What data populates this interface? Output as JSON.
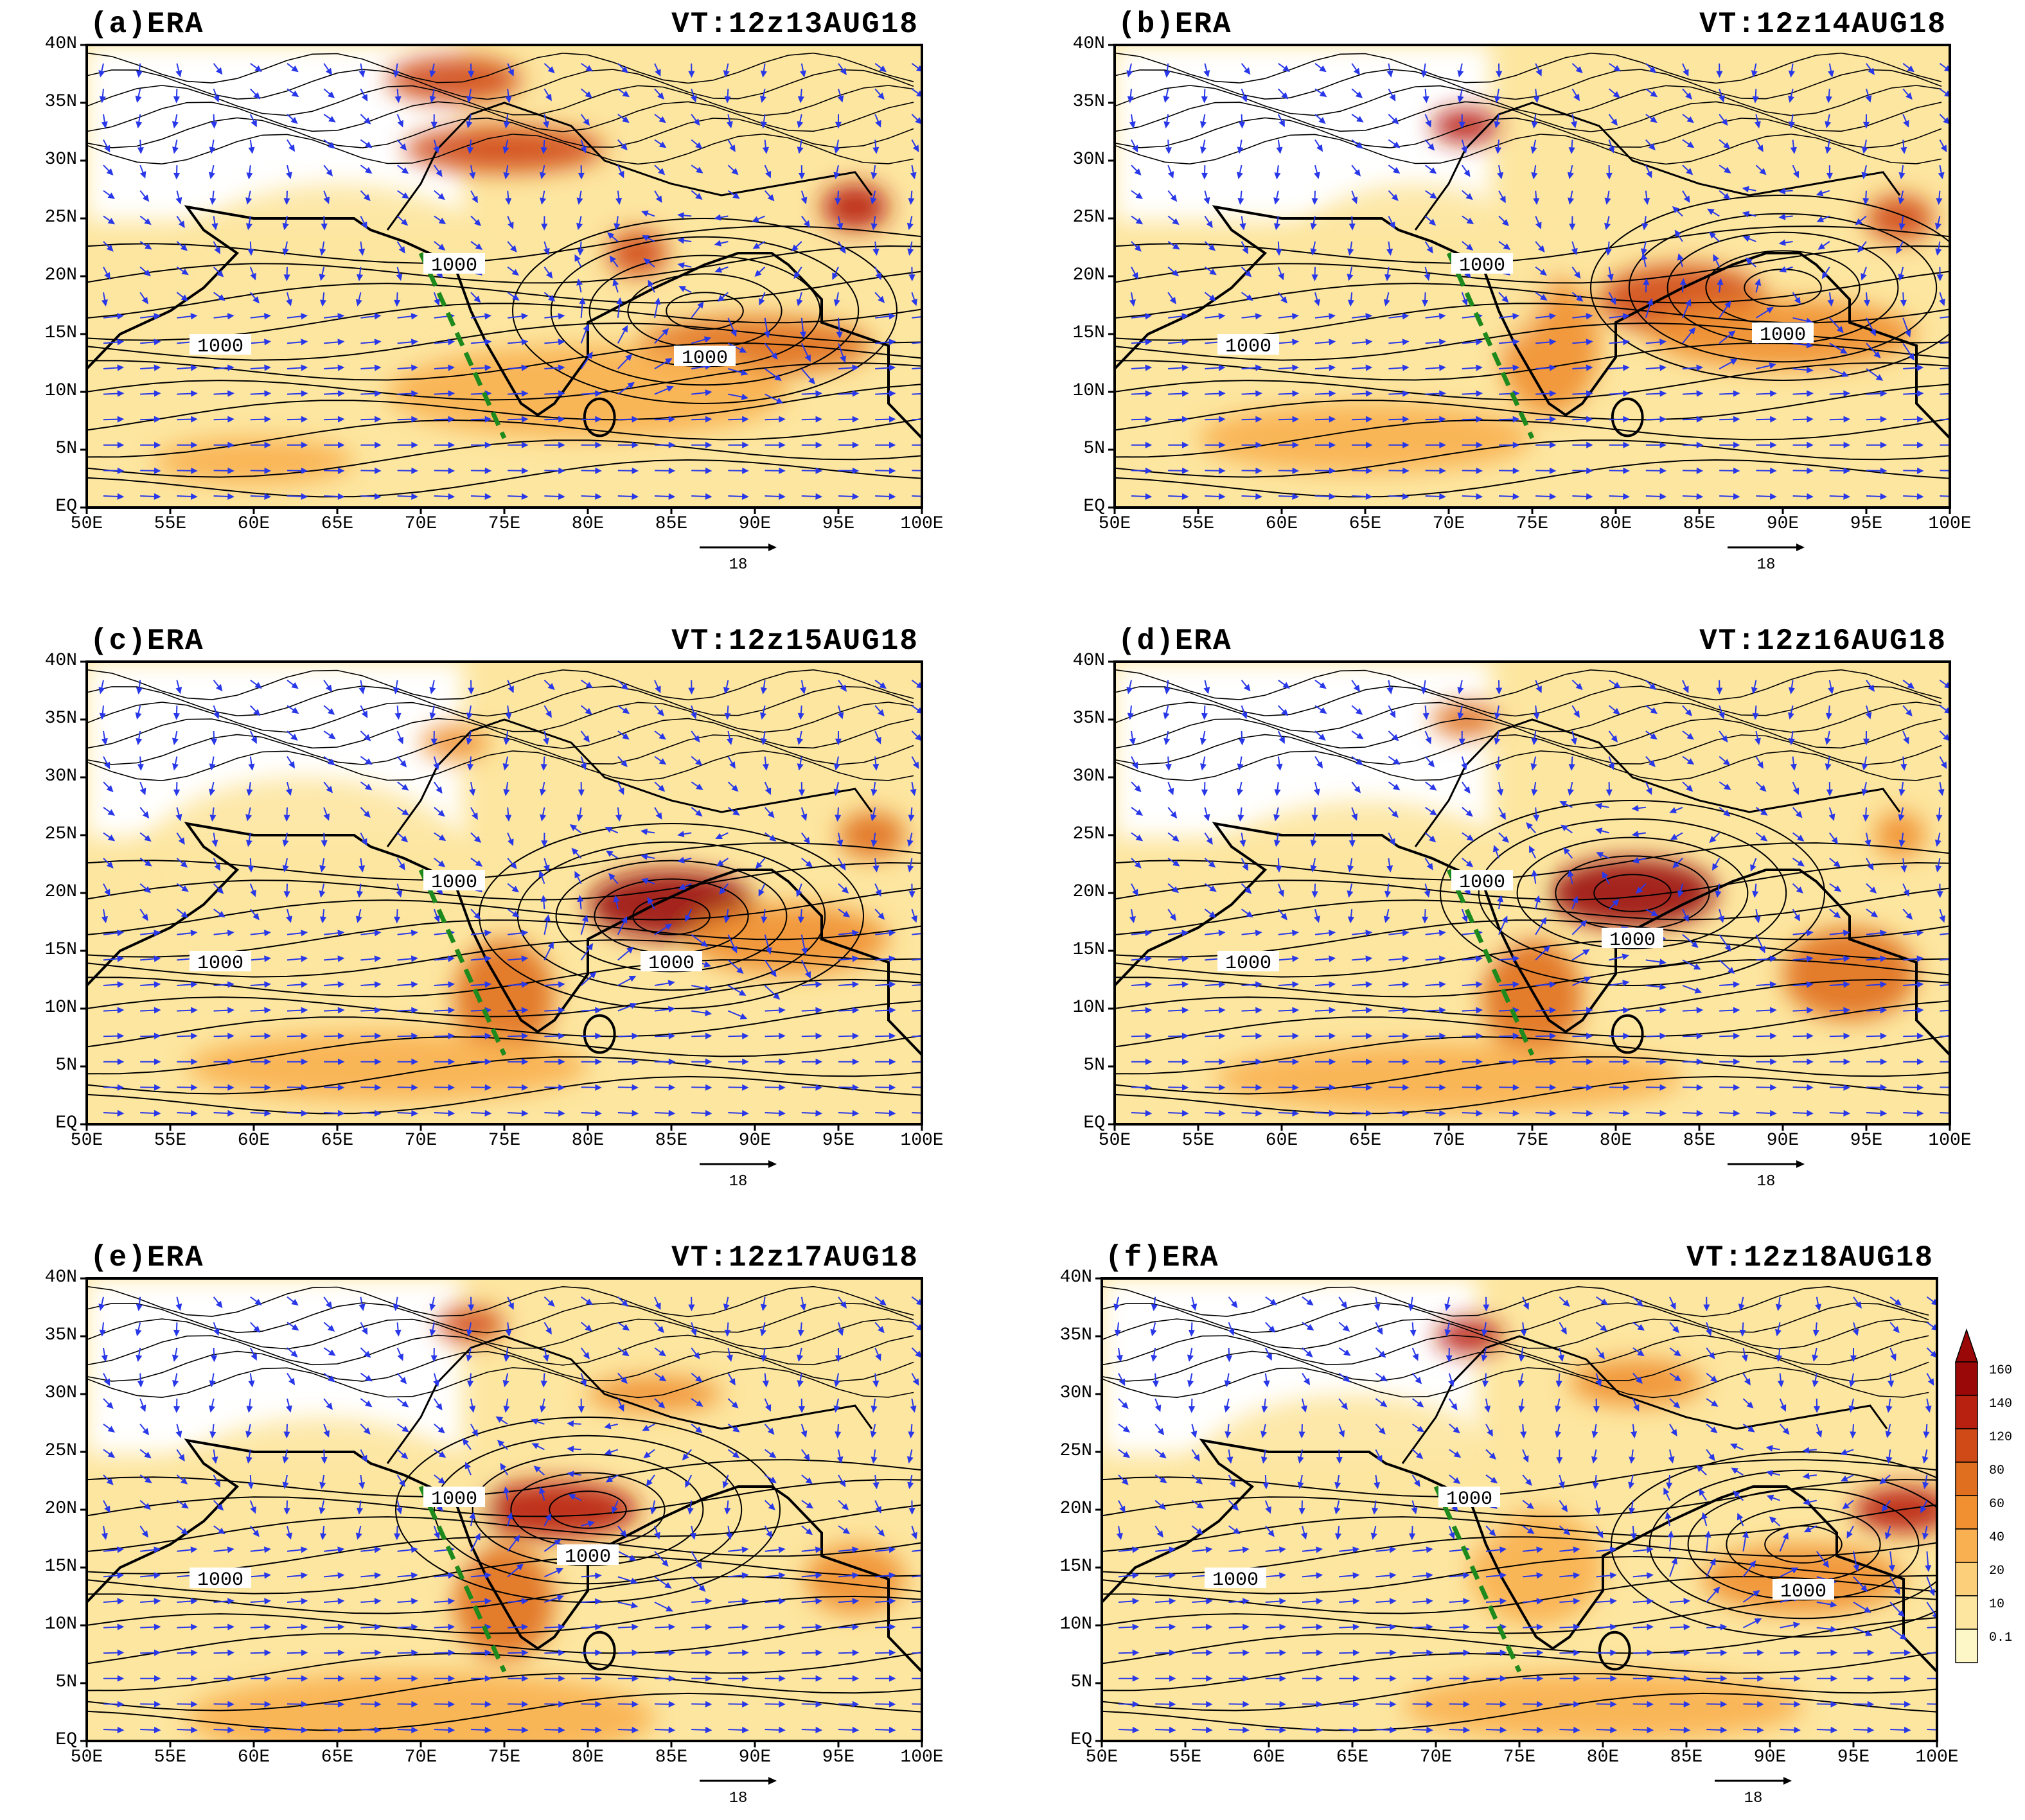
{
  "panels": [
    {
      "id": "a",
      "label": "(a)ERA",
      "valid_time": "VT:12z13AUG18",
      "contour_label": "1000"
    },
    {
      "id": "b",
      "label": "(b)ERA",
      "valid_time": "VT:12z14AUG18",
      "contour_label": "1000"
    },
    {
      "id": "c",
      "label": "(c)ERA",
      "valid_time": "VT:12z15AUG18",
      "contour_label": "1000"
    },
    {
      "id": "d",
      "label": "(d)ERA",
      "valid_time": "VT:12z16AUG18",
      "contour_label": "1000"
    },
    {
      "id": "e",
      "label": "(e)ERA",
      "valid_time": "VT:12z17AUG18",
      "contour_label": "1000"
    },
    {
      "id": "f",
      "label": "(f)ERA",
      "valid_time": "VT:12z18AUG18",
      "contour_label": "1000"
    }
  ],
  "lat_ticks": [
    "40N",
    "35N",
    "30N",
    "25N",
    "20N",
    "15N",
    "10N",
    "5N",
    "EQ"
  ],
  "lon_ticks": [
    "50E",
    "55E",
    "60E",
    "65E",
    "70E",
    "75E",
    "80E",
    "85E",
    "90E",
    "95E",
    "100E"
  ],
  "reference_vector_label": "18",
  "colorbar": {
    "levels": [
      "0.1",
      "10",
      "20",
      "40",
      "60",
      "80",
      "120",
      "140",
      "160"
    ],
    "colors": [
      "#fdf6c6",
      "#fde6a0",
      "#fcd07a",
      "#f8b050",
      "#f09030",
      "#e07020",
      "#d04a18",
      "#b82010",
      "#9a0808"
    ]
  },
  "colors": {
    "wind_vector": "#2838e8",
    "contour": "#000000",
    "transect": "#1e8a1e",
    "frame": "#000000"
  }
}
